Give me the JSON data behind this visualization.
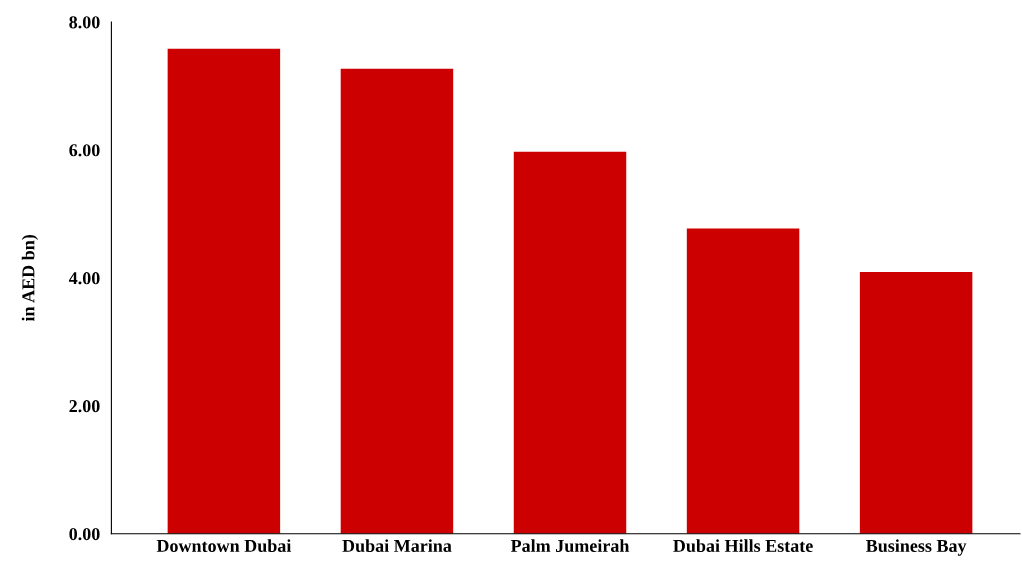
{
  "chart_data": {
    "type": "bar",
    "ylabel": "in AED bn)",
    "categories": [
      "Downtown Dubai",
      "Dubai Marina",
      "Palm Jumeirah",
      "Dubai Hills Estate",
      "Business Bay"
    ],
    "values": [
      7.58,
      7.27,
      5.97,
      4.77,
      4.09
    ],
    "color": "#cc0000",
    "ylim": [
      0,
      8
    ],
    "yticks": [
      {
        "value": 0,
        "label": "0.00"
      },
      {
        "value": 2,
        "label": "2.00"
      },
      {
        "value": 4,
        "label": "4.00"
      },
      {
        "value": 6,
        "label": "6.00"
      },
      {
        "value": 8,
        "label": "8.00"
      }
    ],
    "grid": false,
    "legend": false
  }
}
